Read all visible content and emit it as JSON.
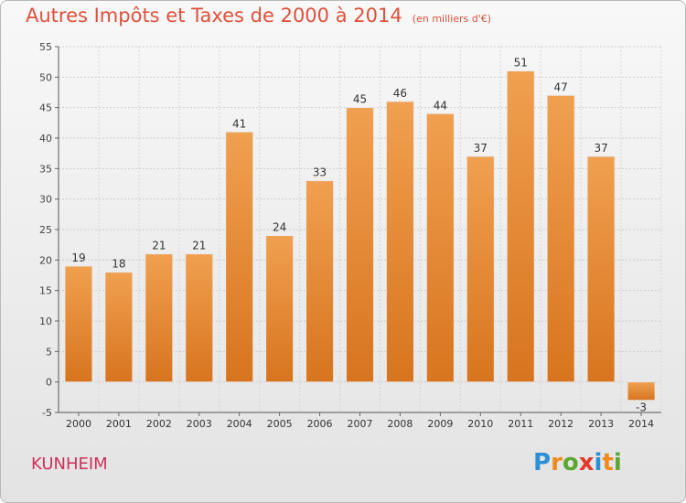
{
  "chart_data": {
    "type": "bar",
    "title": "Autres Impôts et Taxes de 2000 à 2014",
    "subtitle": "(en milliers d'€)",
    "categories": [
      "2000",
      "2001",
      "2002",
      "2003",
      "2004",
      "2005",
      "2006",
      "2007",
      "2008",
      "2009",
      "2010",
      "2011",
      "2012",
      "2013",
      "2014"
    ],
    "values": [
      19,
      18,
      21,
      21,
      41,
      24,
      33,
      45,
      46,
      44,
      37,
      51,
      47,
      37,
      -3
    ],
    "data_labels": [
      "19",
      "18",
      "21",
      "21",
      "41",
      "24",
      "33",
      "45",
      "46",
      "44",
      "37",
      "51",
      "47",
      "37",
      "-3"
    ],
    "ylim": [
      -5,
      55
    ],
    "yticks": [
      -5,
      0,
      5,
      10,
      15,
      20,
      25,
      30,
      35,
      40,
      45,
      50,
      55
    ],
    "grid": true,
    "bar_color": "#f0a050",
    "bar_color_dark": "#d8741e"
  },
  "footer": {
    "commune": "KUNHEIM",
    "logo_letters": [
      {
        "ch": "P",
        "color": "#2d8fd6"
      },
      {
        "ch": "r",
        "color": "#f08a1c"
      },
      {
        "ch": "o",
        "color": "#5aa832"
      },
      {
        "ch": "x",
        "color": "#e03a2a"
      },
      {
        "ch": "i",
        "color": "#2d8fd6"
      },
      {
        "ch": "t",
        "color": "#f08a1c"
      },
      {
        "ch": "i",
        "color": "#5aa832"
      }
    ]
  }
}
